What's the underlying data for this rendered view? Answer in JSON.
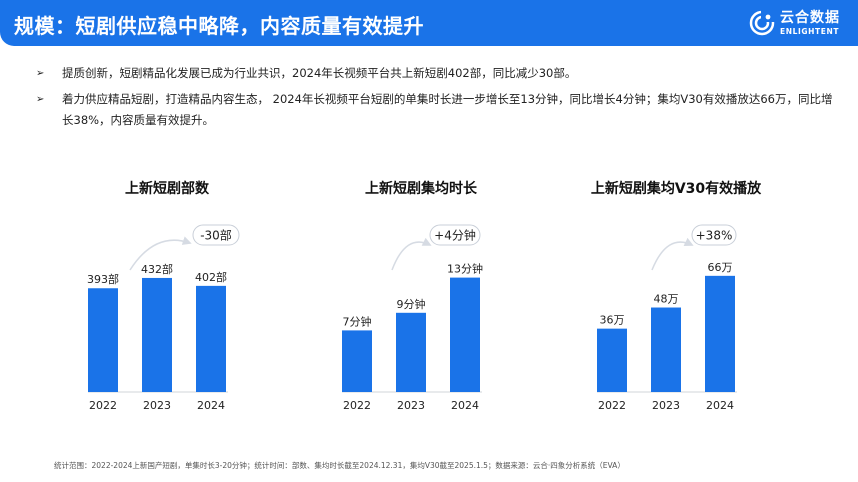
{
  "header": {
    "title": "规模：短剧供应稳中略降，内容质量有效提升",
    "logo_cn": "云合数据",
    "logo_en": "ENLIGHTENT"
  },
  "bullets": [
    {
      "text": "提质创新，短剧精品化发展已成为行业共识，2024年长视频平台共上新短剧402部，同比减少30部。"
    },
    {
      "text": "着力供应精品短剧，打造精品内容生态， 2024年长视频平台短剧的单集时长进一步增长至13分钟，同比增长4分钟；集均V30有效播放达66万，同比增长38%，内容质量有效提升。"
    }
  ],
  "chart_data": [
    {
      "type": "bar",
      "title": "上新短剧部数",
      "categories": [
        "2022",
        "2023",
        "2024"
      ],
      "values": [
        393,
        432,
        402
      ],
      "value_labels": [
        "393部",
        "432部",
        "402部"
      ],
      "ylim": [
        0,
        500
      ],
      "change_label": "-30部",
      "color": "#1a73e8"
    },
    {
      "type": "bar",
      "title": "上新短剧集均时长",
      "categories": [
        "2022",
        "2023",
        "2024"
      ],
      "values": [
        7,
        9,
        13
      ],
      "value_labels": [
        "7分钟",
        "9分钟",
        "13分钟"
      ],
      "ylim": [
        0,
        15
      ],
      "change_label": "+4分钟",
      "color": "#1a73e8"
    },
    {
      "type": "bar",
      "title": "上新短剧集均V30有效播放",
      "categories": [
        "2022",
        "2023",
        "2024"
      ],
      "values": [
        36,
        48,
        66
      ],
      "value_labels": [
        "36万",
        "48万",
        "66万"
      ],
      "ylim": [
        0,
        75
      ],
      "change_label": "+38%",
      "color": "#1a73e8"
    }
  ],
  "footnote": "统计范围：2022-2024上新国产短剧，单集时长3-20分钟；统计时间：部数、集均时长截至2024.12.31，集均V30截至2025.1.5；数据来源：云合·四象分析系统（EVA）"
}
